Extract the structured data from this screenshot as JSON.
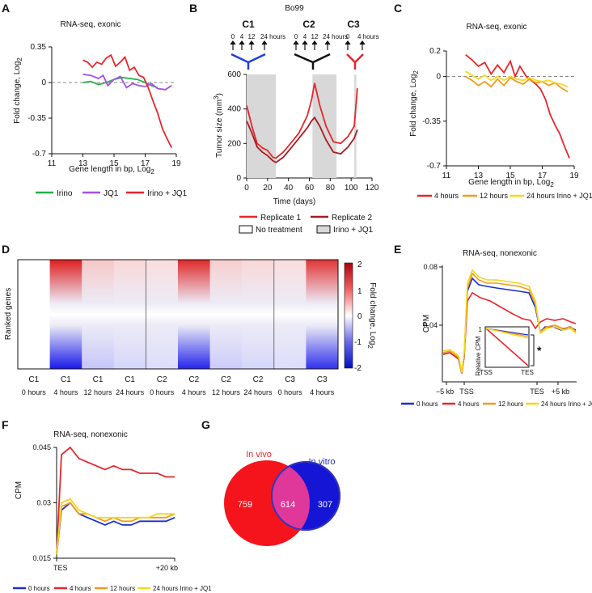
{
  "panels": {
    "A": {
      "letter": "A",
      "chart_data": {
        "type": "line",
        "title": "RNA-seq, exonic",
        "xlabel": "Gene length in bp, Log",
        "xlabel_sub": "2",
        "ylabel": "Fold change, Log",
        "ylabel_sub": "2",
        "xlim": [
          11,
          19
        ],
        "ylim": [
          -0.7,
          0.35
        ],
        "xticks": [
          "11",
          "13",
          "15",
          "17",
          "19"
        ],
        "yticks": [
          "0.35",
          "0",
          "-0.35",
          "-0.7"
        ],
        "reference_line": 0,
        "series": [
          {
            "name": "Irino",
            "color": "#22b14c",
            "x": [
              13,
              13.5,
              14,
              14.5,
              15,
              15.5,
              16,
              16.5,
              17,
              17.4,
              17.8
            ],
            "y": [
              0.0,
              0.01,
              -0.02,
              0.0,
              0.03,
              0.05,
              0.04,
              0.03,
              0.0,
              -0.03,
              -0.05
            ]
          },
          {
            "name": "JQ1",
            "color": "#a64ee8",
            "x": [
              13,
              13.5,
              14,
              14.3,
              14.6,
              15,
              15.4,
              15.8,
              16.2,
              16.6,
              17,
              17.4,
              17.8,
              18.3,
              18.7
            ],
            "y": [
              0.08,
              0.07,
              0.04,
              0.07,
              -0.03,
              0.03,
              0.06,
              -0.05,
              -0.01,
              -0.03,
              -0.04,
              -0.01,
              -0.06,
              -0.07,
              -0.03
            ]
          },
          {
            "name": "Irino + JQ1",
            "color": "#e8262b",
            "x": [
              13,
              13.3,
              13.6,
              13.9,
              14.2,
              14.5,
              14.8,
              15.1,
              15.4,
              15.7,
              16,
              16.3,
              16.6,
              16.9,
              17.2,
              17.5,
              17.8,
              18.1,
              18.4,
              18.7
            ],
            "y": [
              0.22,
              0.2,
              0.15,
              0.2,
              0.18,
              0.24,
              0.27,
              0.16,
              0.2,
              0.25,
              0.12,
              0.15,
              0.07,
              0.05,
              -0.05,
              -0.18,
              -0.3,
              -0.45,
              -0.55,
              -0.64
            ]
          }
        ],
        "legend_placement": "bottom"
      }
    },
    "B": {
      "letter": "B",
      "title": "Bo99",
      "cycles": [
        {
          "label": "C1",
          "color": "#1f3ee0"
        },
        {
          "label": "C2",
          "color": "#111111"
        },
        {
          "label": "C3",
          "color": "#e8262b"
        }
      ],
      "timepoints_c1": [
        "0",
        "4",
        "12",
        "24 hours"
      ],
      "timepoints_c2": [
        "0",
        "4",
        "12",
        "24 hours"
      ],
      "timepoints_c3": [
        "0",
        "4 hours"
      ],
      "chart_data": {
        "type": "line",
        "xlabel": "Time (days)",
        "ylabel": "Tumor size (mm",
        "ylabel_sup": "3",
        "ylabel_end": ")",
        "xlim": [
          0,
          120
        ],
        "ylim": [
          0,
          600
        ],
        "xticks": [
          "0",
          "20",
          "40",
          "60",
          "80",
          "100",
          "120"
        ],
        "yticks": [
          "0",
          "200",
          "400",
          "600"
        ],
        "treatment_windows_days": [
          [
            0,
            28
          ],
          [
            63,
            86
          ],
          [
            103,
            105
          ]
        ],
        "series": [
          {
            "name": "Replicate 1",
            "color": "#e8262b",
            "x": [
              0,
              5,
              10,
              15,
              20,
              25,
              28,
              35,
              42,
              50,
              58,
              62,
              65,
              70,
              76,
              83,
              90,
              97,
              103,
              106
            ],
            "y": [
              420,
              300,
              200,
              175,
              160,
              120,
              115,
              150,
              200,
              260,
              360,
              450,
              550,
              420,
              300,
              210,
              200,
              240,
              300,
              520
            ]
          },
          {
            "name": "Replicate 2",
            "color": "#a51c24",
            "x": [
              0,
              5,
              10,
              15,
              20,
              25,
              28,
              35,
              42,
              50,
              58,
              62,
              65,
              70,
              76,
              83,
              90,
              97,
              103,
              106
            ],
            "y": [
              330,
              260,
              180,
              150,
              130,
              100,
              90,
              120,
              170,
              230,
              290,
              330,
              350,
              300,
              220,
              150,
              140,
              180,
              230,
              280
            ]
          }
        ],
        "legend": [
          "Replicate 1",
          "Replicate 2",
          "No treatment",
          "Irino + JQ1"
        ]
      }
    },
    "C": {
      "letter": "C",
      "chart_data": {
        "type": "line",
        "title": "RNA-seq, exonic",
        "xlabel": "Gene length in bp, Log",
        "xlabel_sub": "2",
        "ylabel": "Fold change, Log",
        "ylabel_sub": "2",
        "xlim": [
          11,
          19
        ],
        "ylim": [
          -0.7,
          0.2
        ],
        "xticks": [
          "11",
          "13",
          "15",
          "17",
          "19"
        ],
        "yticks": [
          "0.2",
          "0",
          "-0.35",
          "-0.7"
        ],
        "reference_line": 0,
        "series": [
          {
            "name": "4 hours",
            "color": "#e8262b",
            "x": [
              12.2,
              12.6,
              13,
              13.4,
              13.8,
              14.2,
              14.6,
              15,
              15.3,
              15.6,
              16,
              16.3,
              16.6,
              16.9,
              17.2,
              17.5,
              17.8,
              18.1,
              18.4,
              18.7
            ],
            "y": [
              0.17,
              0.13,
              0.08,
              0.11,
              0.02,
              0.09,
              0.03,
              0.12,
              0.0,
              0.08,
              0.0,
              -0.03,
              -0.06,
              -0.1,
              -0.18,
              -0.3,
              -0.38,
              -0.45,
              -0.55,
              -0.64
            ]
          },
          {
            "name": "12 hours",
            "color": "#f39a1f",
            "x": [
              12.2,
              12.6,
              13,
              13.4,
              13.8,
              14.2,
              14.6,
              15,
              15.4,
              15.8,
              16.2,
              16.6,
              17,
              17.4,
              17.8,
              18.2,
              18.6
            ],
            "y": [
              0.0,
              -0.03,
              -0.07,
              -0.04,
              -0.08,
              -0.02,
              -0.07,
              -0.01,
              -0.04,
              -0.06,
              -0.02,
              -0.05,
              -0.04,
              -0.07,
              -0.05,
              -0.09,
              -0.12
            ]
          },
          {
            "name": "24 hours Irino + JQ1",
            "color": "#f2d91c",
            "x": [
              12.2,
              12.6,
              13,
              13.4,
              13.8,
              14.2,
              14.6,
              15,
              15.4,
              15.8,
              16.2,
              16.6,
              17,
              17.4,
              17.8,
              18.2,
              18.6
            ],
            "y": [
              0.04,
              0.01,
              -0.02,
              0.01,
              -0.03,
              0.0,
              -0.03,
              0.0,
              -0.02,
              -0.03,
              -0.01,
              -0.03,
              -0.04,
              -0.03,
              -0.05,
              -0.06,
              -0.08
            ]
          }
        ],
        "legend_placement": "bottom"
      }
    },
    "D": {
      "letter": "D",
      "chart_data": {
        "type": "heatmap",
        "ylabel": "Ranked genes",
        "colorbar_label": "Fold change, Log",
        "colorbar_sub": "2",
        "colorbar_ticks": [
          "2",
          "1",
          "0",
          "-1",
          "-2"
        ],
        "columns": [
          {
            "cycle": "C1",
            "time": "0 hours",
            "intensity": 0.0
          },
          {
            "cycle": "C1",
            "time": "4 hours",
            "intensity": 1.0
          },
          {
            "cycle": "C1",
            "time": "12 hours",
            "intensity": 0.25
          },
          {
            "cycle": "C1",
            "time": "24 hours",
            "intensity": 0.18
          },
          {
            "cycle": "C2",
            "time": "0 hours",
            "intensity": 0.15
          },
          {
            "cycle": "C2",
            "time": "4 hours",
            "intensity": 0.95
          },
          {
            "cycle": "C2",
            "time": "12 hours",
            "intensity": 0.22
          },
          {
            "cycle": "C2",
            "time": "24 hours",
            "intensity": 0.18
          },
          {
            "cycle": "C3",
            "time": "0 hours",
            "intensity": 0.15
          },
          {
            "cycle": "C3",
            "time": "4 hours",
            "intensity": 0.9
          }
        ]
      }
    },
    "E": {
      "letter": "E",
      "chart_data": {
        "type": "line",
        "title": "RNA-seq, nonexonic",
        "ylabel": "CPM",
        "xticks": [
          "−5 kb",
          "TSS",
          "TES",
          "+5 kb"
        ],
        "yticks": [
          "0.08",
          "0.04"
        ],
        "ylim": [
          0.005,
          0.08
        ],
        "series_names": [
          "0 hours",
          "4 hours",
          "12 hours",
          "24 hours Irino + JQ1"
        ],
        "colors": [
          "#1f2fc8",
          "#e8262b",
          "#f39a1f",
          "#f2d91c"
        ],
        "inset": {
          "ylabel": "Relative CPM",
          "xticks": [
            "TSS",
            "TES"
          ],
          "ytick": "1",
          "annotation": "*"
        }
      }
    },
    "F": {
      "letter": "F",
      "chart_data": {
        "type": "line",
        "title": "RNA-seq, nonexonic",
        "ylabel": "CPM",
        "xticks": [
          "TES",
          "+20 kb"
        ],
        "yticks": [
          "0.045",
          "0.03",
          "0.015"
        ],
        "ylim": [
          0.015,
          0.045
        ],
        "series": [
          {
            "name": "0 hours",
            "color": "#1f2fc8",
            "y": [
              0.016,
              0.028,
              0.03,
              0.027,
              0.026,
              0.025,
              0.024,
              0.025,
              0.024,
              0.024,
              0.025,
              0.025,
              0.025,
              0.025,
              0.026
            ]
          },
          {
            "name": "4 hours",
            "color": "#e8262b",
            "y": [
              0.016,
              0.043,
              0.045,
              0.042,
              0.041,
              0.04,
              0.039,
              0.04,
              0.039,
              0.039,
              0.038,
              0.038,
              0.038,
              0.037,
              0.037
            ]
          },
          {
            "name": "12 hours",
            "color": "#f39a1f",
            "y": [
              0.016,
              0.029,
              0.03,
              0.027,
              0.027,
              0.026,
              0.025,
              0.026,
              0.025,
              0.025,
              0.026,
              0.026,
              0.026,
              0.026,
              0.027
            ]
          },
          {
            "name": "24 hours Irino + JQ1",
            "color": "#f2d91c",
            "y": [
              0.016,
              0.03,
              0.031,
              0.028,
              0.027,
              0.026,
              0.026,
              0.026,
              0.026,
              0.026,
              0.026,
              0.026,
              0.027,
              0.027,
              0.027
            ]
          }
        ]
      }
    },
    "G": {
      "letter": "G",
      "chart_data": {
        "type": "venn",
        "sets": [
          {
            "name": "In vivo",
            "color": "#e8262b",
            "only": 759
          },
          {
            "name": "In vitro",
            "color": "#1f2fc8",
            "only": 307
          }
        ],
        "overlap": 614,
        "overlap_color": "#e0379a"
      }
    }
  }
}
